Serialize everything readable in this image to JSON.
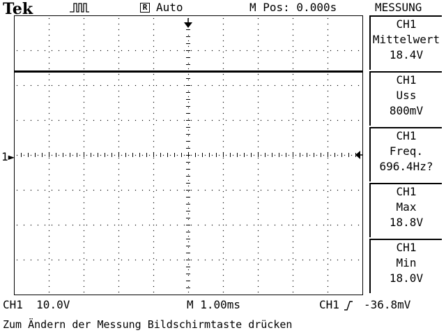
{
  "header": {
    "brand": "Tek",
    "acquisition_icon": "pulse-waveform-icon",
    "trigger_state_symbol": "R",
    "trigger_mode": "Auto",
    "position_readout": "M Pos: 0.000s"
  },
  "menu": {
    "title": "MESSUNG",
    "measurements": [
      {
        "channel": "CH1",
        "type": "Mittelwert",
        "value": "18.4V"
      },
      {
        "channel": "CH1",
        "type": "Uss",
        "value": "800mV"
      },
      {
        "channel": "CH1",
        "type": "Freq.",
        "value": "696.4Hz?"
      },
      {
        "channel": "CH1",
        "type": "Max",
        "value": "18.8V"
      },
      {
        "channel": "CH1",
        "type": "Min",
        "value": "18.0V"
      }
    ]
  },
  "display": {
    "channel_marker": "1",
    "waveform_level_div": 2.4,
    "colors": {
      "background": "#ffffff",
      "foreground": "#000000"
    }
  },
  "footer": {
    "ch1_label": "CH1",
    "ch1_scale": "10.0V",
    "timebase": "M 1.00ms",
    "trigger_source": "CH1",
    "trigger_slope_icon": "rising-edge-icon",
    "trigger_level": "-36.8mV"
  },
  "status_message": "Zum Ändern der Messung Bildschirmtaste drücken"
}
